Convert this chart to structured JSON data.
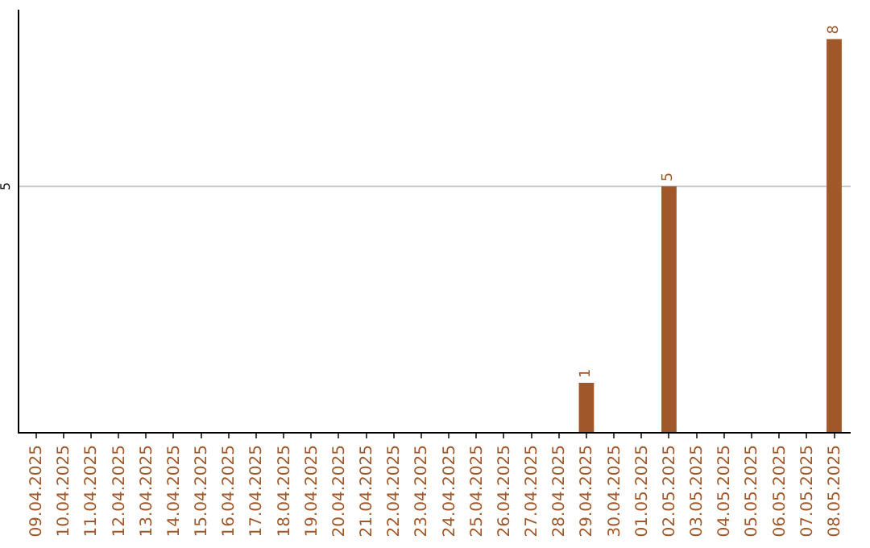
{
  "chart_data": {
    "type": "bar",
    "categories": [
      "09.04.2025",
      "10.04.2025",
      "11.04.2025",
      "12.04.2025",
      "13.04.2025",
      "14.04.2025",
      "15.04.2025",
      "16.04.2025",
      "17.04.2025",
      "18.04.2025",
      "19.04.2025",
      "20.04.2025",
      "21.04.2025",
      "22.04.2025",
      "23.04.2025",
      "24.04.2025",
      "25.04.2025",
      "26.04.2025",
      "27.04.2025",
      "28.04.2025",
      "29.04.2025",
      "30.04.2025",
      "01.05.2025",
      "02.05.2025",
      "03.05.2025",
      "04.05.2025",
      "05.05.2025",
      "06.05.2025",
      "07.05.2025",
      "08.05.2025"
    ],
    "series": [
      {
        "color": "#a0582a",
        "values": [
          null,
          null,
          null,
          null,
          null,
          null,
          null,
          null,
          null,
          null,
          null,
          null,
          null,
          null,
          null,
          null,
          null,
          null,
          null,
          null,
          1,
          null,
          null,
          5,
          null,
          null,
          null,
          null,
          null,
          8
        ],
        "value_labels": [
          null,
          null,
          null,
          null,
          null,
          null,
          null,
          null,
          null,
          null,
          null,
          null,
          null,
          null,
          null,
          null,
          null,
          null,
          null,
          null,
          "1",
          null,
          null,
          "5",
          null,
          null,
          null,
          null,
          null,
          "8"
        ]
      }
    ],
    "ylim": [
      0,
      8.6
    ],
    "ref_lines": [
      {
        "axis": "y",
        "value": 5,
        "label": "5",
        "color": "#cccccc"
      }
    ],
    "legend": false
  }
}
